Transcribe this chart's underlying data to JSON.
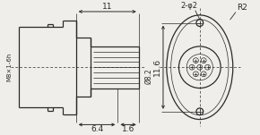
{
  "bg_color": "#f0eeea",
  "line_color": "#2a2a2a",
  "dim_color": "#2a2a2a",
  "annotations": {
    "dim_11": "11",
    "dim_6_4": "6.4",
    "dim_1_6": "1.6",
    "dim_8_2": "Ø8.2",
    "dim_M8": "M8×1-6h",
    "dim_2phi2": "2-φ2",
    "dim_R2": "R2",
    "dim_11_6": "11.6"
  },
  "lw": 0.9,
  "thin_lw": 0.5
}
